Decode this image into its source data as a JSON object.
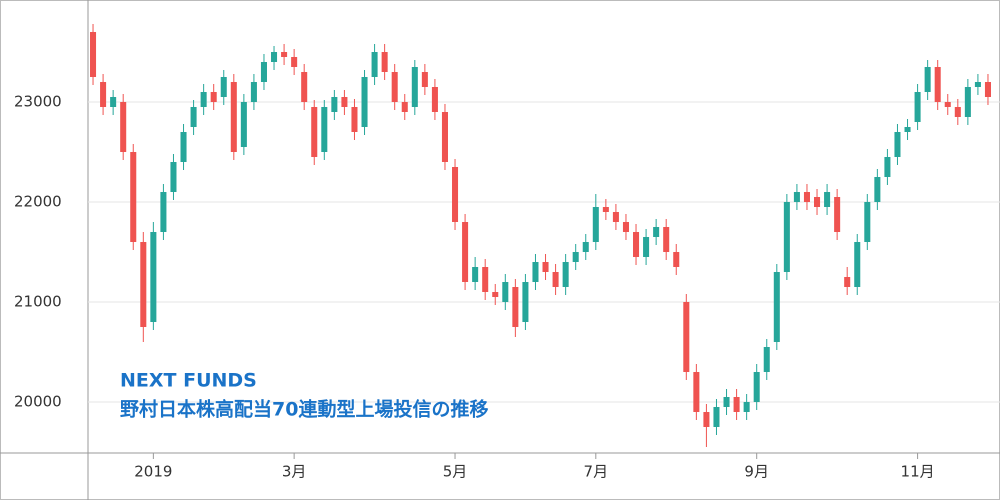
{
  "chart_data": {
    "type": "candlestick",
    "title": "NEXT FUNDS",
    "subtitle": "野村日本株高配当70連動型上場投信の推移",
    "categories": [
      null,
      null,
      null,
      null,
      null,
      null,
      "2019",
      null,
      null,
      null,
      null,
      null,
      null,
      null,
      null,
      null,
      null,
      null,
      null,
      null,
      "3月",
      null,
      null,
      null,
      null,
      null,
      null,
      null,
      null,
      null,
      null,
      null,
      null,
      null,
      null,
      null,
      "5月",
      null,
      null,
      null,
      null,
      null,
      null,
      null,
      null,
      null,
      null,
      null,
      null,
      null,
      "7月",
      null,
      null,
      null,
      null,
      null,
      null,
      null,
      null,
      null,
      null,
      null,
      null,
      null,
      null,
      null,
      "9月",
      null,
      null,
      null,
      null,
      null,
      null,
      null,
      null,
      null,
      null,
      null,
      null,
      null,
      null,
      null,
      "11月",
      null,
      null,
      null,
      null,
      null,
      null,
      null
    ],
    "open": [
      23700,
      23200,
      22950,
      23000,
      22500,
      21600,
      20800,
      21700,
      22100,
      22400,
      22750,
      22950,
      23100,
      23050,
      23200,
      22550,
      23000,
      23200,
      23400,
      23500,
      23450,
      23300,
      22950,
      22500,
      22900,
      23050,
      22950,
      22750,
      23250,
      23500,
      23300,
      23000,
      22950,
      23300,
      23150,
      22900,
      22350,
      21800,
      21200,
      21350,
      21100,
      21000,
      21150,
      20800,
      21200,
      21400,
      21300,
      21150,
      21400,
      21500,
      21600,
      21950,
      21900,
      21800,
      21700,
      21450,
      21650,
      21750,
      21500,
      21000,
      20300,
      19900,
      19750,
      19950,
      20050,
      19900,
      20000,
      20300,
      20600,
      21300,
      22000,
      22100,
      22050,
      21950,
      22050,
      21250,
      21150,
      21600,
      22000,
      22250,
      22450,
      22700,
      22800,
      23100,
      23350,
      23000,
      22950,
      22850,
      23150,
      23200
    ],
    "high": [
      23780,
      23280,
      23120,
      23080,
      22580,
      21700,
      21800,
      22180,
      22480,
      22780,
      23020,
      23180,
      23180,
      23320,
      23280,
      23080,
      23280,
      23480,
      23560,
      23580,
      23530,
      23380,
      23020,
      23020,
      23120,
      23120,
      23030,
      23320,
      23580,
      23580,
      23380,
      23080,
      23420,
      23380,
      23230,
      22980,
      22430,
      21880,
      21450,
      21430,
      21180,
      21280,
      21230,
      21280,
      21480,
      21480,
      21380,
      21480,
      21580,
      21680,
      22080,
      22030,
      21980,
      21880,
      21780,
      21730,
      21830,
      21830,
      21580,
      21080,
      20380,
      19980,
      20030,
      20130,
      20130,
      20080,
      20380,
      20630,
      21380,
      22080,
      22180,
      22180,
      22130,
      22180,
      22130,
      21350,
      21680,
      22080,
      22330,
      22530,
      22780,
      22830,
      23180,
      23420,
      23420,
      23080,
      23030,
      23230,
      23280,
      23280
    ],
    "low": [
      23170,
      22870,
      22870,
      22420,
      21520,
      20600,
      20720,
      21620,
      22020,
      22320,
      22670,
      22870,
      22920,
      22970,
      22420,
      22470,
      22920,
      23120,
      23320,
      23370,
      23270,
      22920,
      22370,
      22420,
      22820,
      22870,
      22620,
      22670,
      23170,
      23220,
      22920,
      22820,
      22870,
      23070,
      22820,
      22320,
      21720,
      21120,
      21120,
      21020,
      20970,
      20920,
      20650,
      20720,
      21120,
      21220,
      21070,
      21070,
      21320,
      21420,
      21520,
      21820,
      21720,
      21620,
      21370,
      21370,
      21570,
      21420,
      21270,
      20220,
      19820,
      19550,
      19670,
      19870,
      19820,
      19820,
      19920,
      20220,
      20520,
      21220,
      21920,
      21920,
      21870,
      21870,
      21620,
      21070,
      21070,
      21520,
      21920,
      22170,
      22370,
      22620,
      22720,
      23020,
      22920,
      22870,
      22770,
      22770,
      23070,
      22970
    ],
    "close": [
      23250,
      22950,
      23050,
      22500,
      21600,
      20750,
      21700,
      22100,
      22400,
      22700,
      22950,
      23100,
      23000,
      23250,
      22500,
      23000,
      23200,
      23400,
      23500,
      23450,
      23350,
      23000,
      22450,
      22950,
      23050,
      22950,
      22700,
      23250,
      23500,
      23300,
      23000,
      22900,
      23350,
      23150,
      22900,
      22400,
      21800,
      21200,
      21350,
      21100,
      21050,
      21200,
      20750,
      21200,
      21400,
      21300,
      21150,
      21400,
      21500,
      21600,
      21950,
      21900,
      21800,
      21700,
      21450,
      21650,
      21750,
      21500,
      21350,
      20300,
      19900,
      19750,
      19950,
      20050,
      19900,
      20000,
      20300,
      20550,
      21300,
      22000,
      22100,
      22000,
      21950,
      22100,
      21700,
      21150,
      21600,
      22000,
      22250,
      22450,
      22700,
      22750,
      23100,
      23350,
      23000,
      22950,
      22850,
      23150,
      23200,
      23050
    ],
    "up_color": "#26a69a",
    "down_color": "#ef5350",
    "ylim": [
      19490,
      24020
    ],
    "yticks": [
      20000,
      21000,
      22000,
      23000
    ]
  }
}
